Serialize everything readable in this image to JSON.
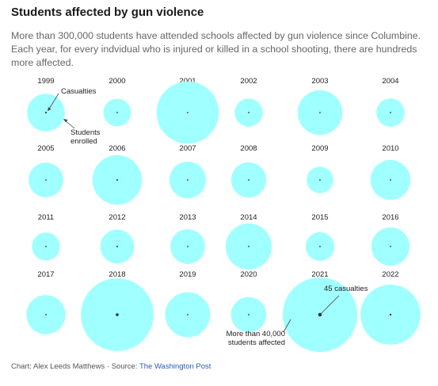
{
  "title": "Students affected by gun violence",
  "subtitle": "More than 300,000 students have attended schools affected by gun violence since Columbine. Each year, for every indvidual who is injured or killed in a school shooting, there are hundreds more affected.",
  "footer": {
    "credit": "Chart: Alex Leeds Matthews · Source: ",
    "source": "The Washington Post"
  },
  "colors": {
    "bubble": "#a0ffff",
    "dot": "#333333",
    "annotation_line": "#444444"
  },
  "chart_data": {
    "type": "bubble-grid",
    "description_labels": {
      "inner": "Casualties",
      "outer_line1": "Students",
      "outer_line2": "enrolled"
    },
    "years": [
      "1999",
      "2000",
      "2001",
      "2002",
      "2003",
      "2004",
      "2005",
      "2006",
      "2007",
      "2008",
      "2009",
      "2010",
      "2011",
      "2012",
      "2013",
      "2014",
      "2015",
      "2016",
      "2017",
      "2018",
      "2019",
      "2020",
      "2021",
      "2022"
    ],
    "students_enrolled": [
      11000,
      5900,
      30000,
      6100,
      15500,
      6200,
      9300,
      19000,
      10400,
      9600,
      5500,
      12400,
      6100,
      8900,
      9300,
      16500,
      6400,
      11300,
      11900,
      41000,
      15700,
      9700,
      43000,
      28000
    ],
    "casualties": [
      10,
      2,
      7,
      2,
      4,
      4,
      6,
      9,
      7,
      5,
      2,
      5,
      3,
      9,
      6,
      6,
      1,
      4,
      4,
      28,
      7,
      2,
      45,
      12
    ],
    "annotations": [
      {
        "year": "2021",
        "line1": "45 casualties"
      },
      {
        "year": "2021",
        "line1": "More than 40,000",
        "line2": "students affected"
      }
    ]
  }
}
